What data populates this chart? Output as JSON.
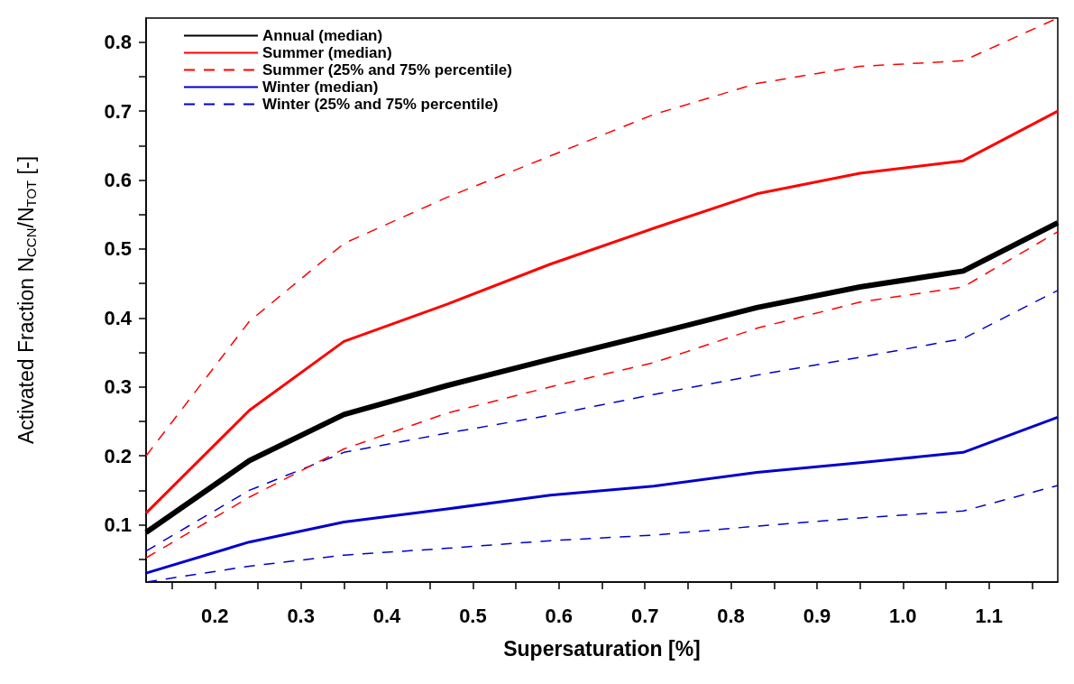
{
  "chart_data": {
    "type": "line",
    "xlabel": "Supersaturation [%]",
    "ylabel": "Activated Fraction N$_{CCN}$/N$_{TOT}$ [-]",
    "x": [
      0.12,
      0.24,
      0.35,
      0.47,
      0.59,
      0.71,
      0.83,
      0.95,
      1.07,
      1.18
    ],
    "series": [
      {
        "name": "Annual (median)",
        "color": "#000000",
        "line_style": "solid",
        "values": [
          0.089,
          0.193,
          0.26,
          0.302,
          0.34,
          0.377,
          0.415,
          0.445,
          0.468,
          0.538
        ]
      },
      {
        "name": "Summer (median)",
        "color": "#ff0000",
        "line_style": "solid",
        "values": [
          0.117,
          0.266,
          0.366,
          0.42,
          0.478,
          0.53,
          0.58,
          0.61,
          0.628,
          0.7
        ]
      },
      {
        "name": "Summer (25% and 75% percentile)",
        "color": "#ff0000",
        "line_style": "dashed",
        "values": [
          0.2,
          0.395,
          0.508,
          0.575,
          0.635,
          0.695,
          0.74,
          0.765,
          0.773,
          0.835
        ]
      },
      {
        "color": "#ff0000",
        "line_style": "dashed",
        "values": [
          0.052,
          0.14,
          0.21,
          0.262,
          0.3,
          0.335,
          0.385,
          0.423,
          0.445,
          0.525
        ]
      },
      {
        "name": "Winter (median)",
        "color": "#0000cc",
        "line_style": "solid",
        "values": [
          0.03,
          0.075,
          0.104,
          0.123,
          0.143,
          0.156,
          0.176,
          0.19,
          0.205,
          0.256
        ]
      },
      {
        "name": "Winter (25% and 75% percentile)",
        "color": "#0000cc",
        "line_style": "dashed",
        "values": [
          0.062,
          0.15,
          0.205,
          0.233,
          0.259,
          0.289,
          0.317,
          0.343,
          0.37,
          0.44
        ]
      },
      {
        "color": "#0000cc",
        "line_style": "dashed",
        "values": [
          0.017,
          0.04,
          0.056,
          0.066,
          0.077,
          0.085,
          0.098,
          0.11,
          0.12,
          0.157
        ]
      }
    ],
    "xlim": [
      0.12,
      1.18
    ],
    "xticks": [
      {
        "value": 0.15,
        "label": null
      },
      0.2,
      {
        "value": 0.25,
        "label": null
      },
      0.3,
      {
        "value": 0.35,
        "label": null
      },
      0.4,
      {
        "value": 0.45,
        "label": null
      },
      0.5,
      {
        "value": 0.55,
        "label": null
      },
      0.6,
      {
        "value": 0.65,
        "label": null
      },
      0.7,
      {
        "value": 0.75,
        "label": null
      },
      0.8,
      {
        "value": 0.85,
        "label": null
      },
      0.9,
      {
        "value": 0.95,
        "label": null
      },
      "1.0",
      {
        "value": 1.05,
        "label": null
      },
      1.1,
      {
        "value": 1.15,
        "label": null
      }
    ],
    "ylim": [
      0.017,
      0.835
    ],
    "yticks": [
      {
        "value": 0.05,
        "label": null
      },
      0.1,
      {
        "value": 0.15,
        "label": null
      },
      0.2,
      {
        "value": 0.25,
        "label": null
      },
      0.3,
      {
        "value": 0.35,
        "label": null
      },
      0.4,
      {
        "value": 0.45,
        "label": null
      },
      0.5,
      {
        "value": 0.55,
        "label": null
      },
      0.6,
      {
        "value": 0.65,
        "label": null
      },
      0.7,
      {
        "value": 0.75,
        "label": null
      },
      0.8
    ],
    "grid": false,
    "legend": "top left",
    "marker": "none"
  }
}
